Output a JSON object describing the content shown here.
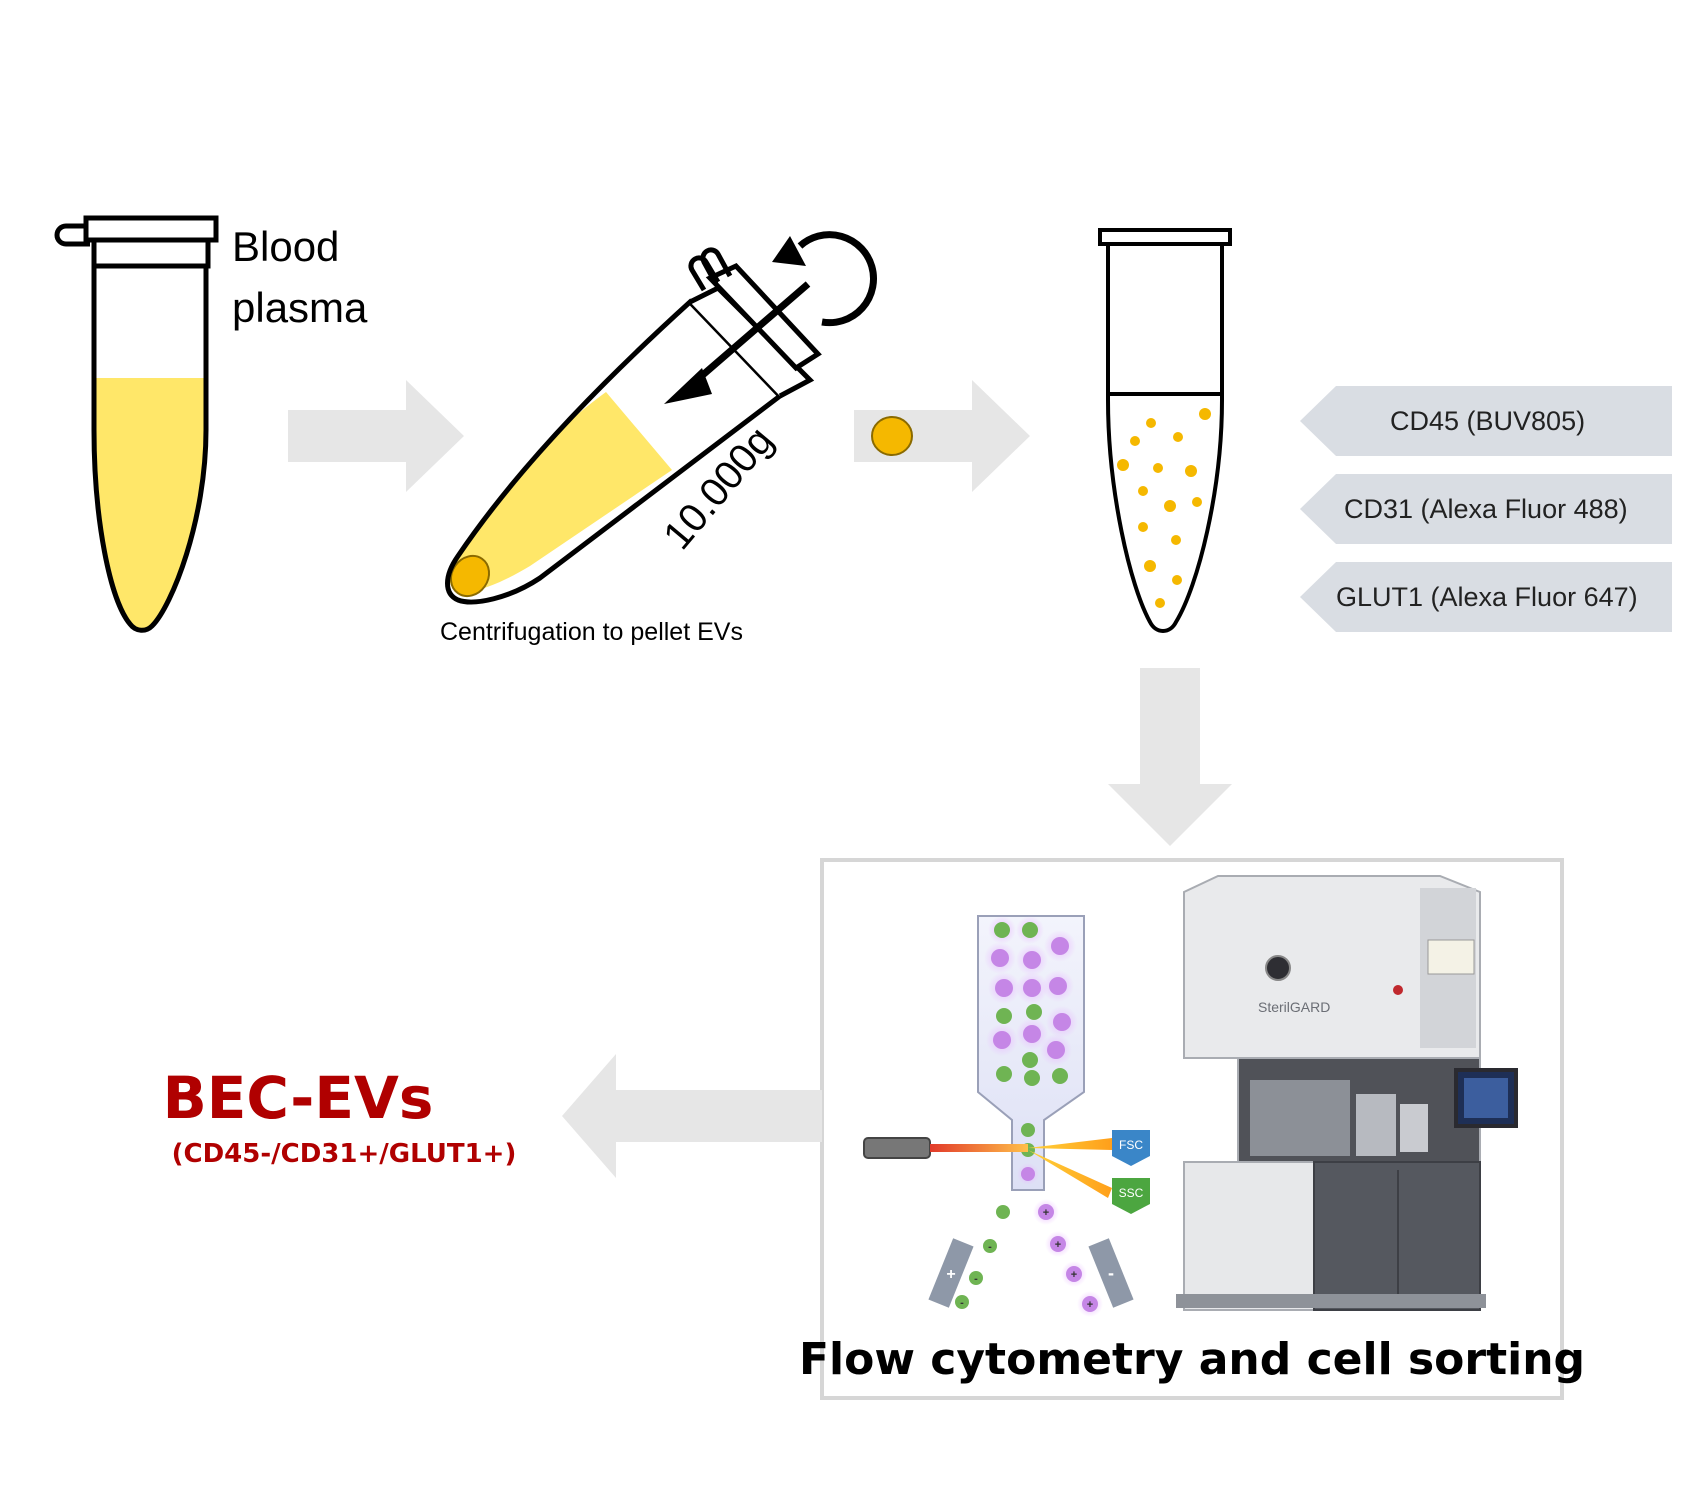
{
  "labels": {
    "blood_plasma_line1": "Blood",
    "blood_plasma_line2": "plasma",
    "centrifugation_caption": "Centrifugation to pellet EVs",
    "speed": "10.000g",
    "flow_caption": "Flow cytometry and cell sorting",
    "result_title": "BEC-EVs",
    "result_subtitle": "(CD45-/CD31+/GLUT1+)"
  },
  "markers": [
    "CD45 (BUV805)",
    "CD31 (Alexa Fluor 488)",
    "GLUT1 (Alexa Fluor 647)"
  ],
  "detectors": {
    "fsc": "FSC",
    "ssc": "SSC"
  },
  "instrument": {
    "brand": "SterilGARD"
  },
  "colors": {
    "plasma_yellow": "#FFE769",
    "pellet_orange": "#F5B800",
    "arrow_gray": "#E6E6E6",
    "marker_tag": "#D9DDE3",
    "result_red": "#B00000",
    "frame_gray": "#D6D6D6",
    "green_particle": "#6FB453",
    "purple_particle": "#C586E6",
    "fsc_blue": "#3A86C8",
    "ssc_green": "#4CA640"
  }
}
